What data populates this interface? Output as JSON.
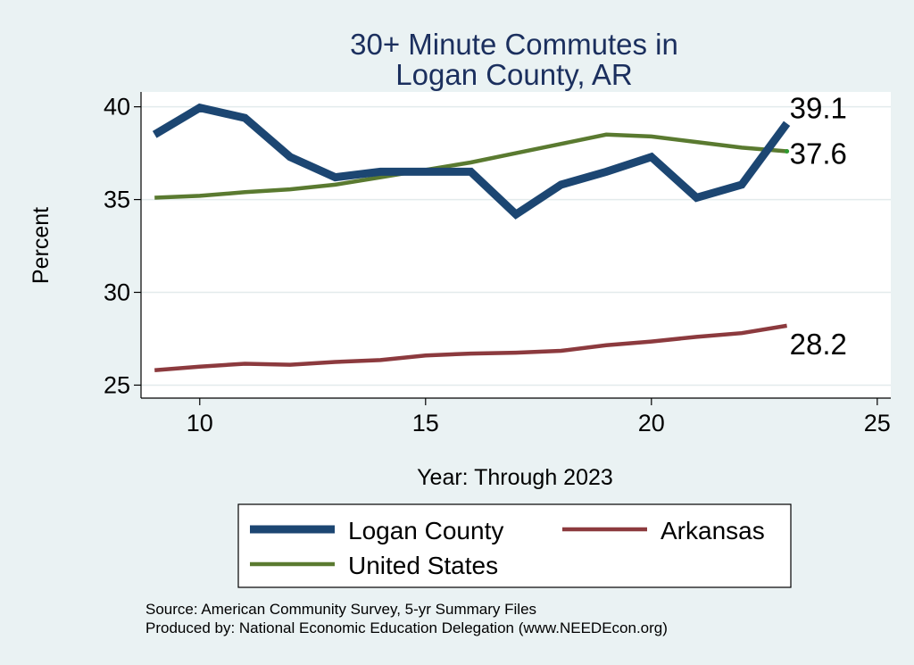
{
  "chart_data": {
    "type": "line",
    "title_lines": [
      "30+ Minute Commutes in",
      "Logan County, AR"
    ],
    "xlabel": "Year: Through 2023",
    "ylabel": "Percent",
    "xlim": [
      8.7,
      25.3
    ],
    "ylim": [
      24.3,
      40.8
    ],
    "xticks": [
      10,
      15,
      20,
      25
    ],
    "yticks": [
      25,
      30,
      35,
      40
    ],
    "grid": true,
    "x": [
      9,
      10,
      11,
      12,
      13,
      14,
      15,
      16,
      17,
      18,
      19,
      20,
      21,
      22,
      23
    ],
    "series": [
      {
        "name": "Logan County",
        "color": "#1c4672",
        "values": [
          38.5,
          39.95,
          39.4,
          37.3,
          36.2,
          36.5,
          36.5,
          36.5,
          34.2,
          35.8,
          36.5,
          37.3,
          35.1,
          35.8,
          39.1
        ],
        "end_label": "39.1"
      },
      {
        "name": "Arkansas",
        "color": "#8c3a3e",
        "values": [
          25.8,
          26.0,
          26.15,
          26.1,
          26.25,
          26.35,
          26.6,
          26.7,
          26.75,
          26.85,
          27.15,
          27.35,
          27.6,
          27.8,
          28.2
        ],
        "end_label": "28.2"
      },
      {
        "name": "United States",
        "color": "#5a7a30",
        "values": [
          35.1,
          35.2,
          35.4,
          35.55,
          35.8,
          36.2,
          36.6,
          37.0,
          37.5,
          38.0,
          38.5,
          38.4,
          38.1,
          37.8,
          37.6
        ],
        "end_label": "37.6"
      }
    ],
    "legend": [
      {
        "name": "Logan County",
        "color": "#1c4672"
      },
      {
        "name": "Arkansas",
        "color": "#8c3a3e"
      },
      {
        "name": "United States",
        "color": "#5a7a30"
      }
    ],
    "notes": [
      "Source: American Community Survey, 5-yr Summary Files",
      "Produced by: National Economic Education Delegation (www.NEEDEcon.org)"
    ]
  }
}
